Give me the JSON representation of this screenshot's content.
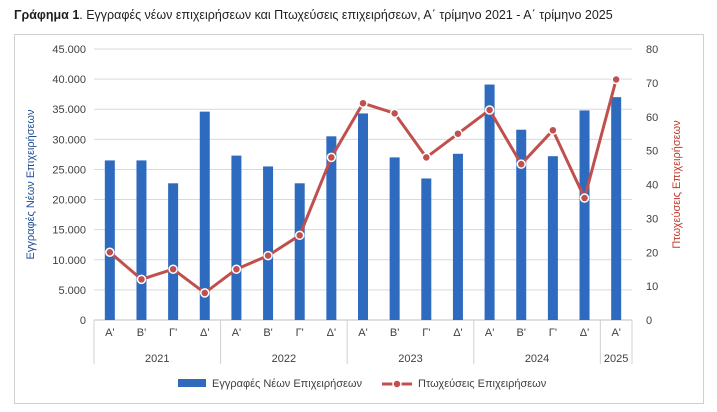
{
  "title": {
    "bold": "Γράφημα 1",
    "rest": ". Εγγραφές νέων επιχειρήσεων και Πτωχεύσεις επιχειρήσεων, Α΄ τρίμηνο 2021 - Α΄ τρίμηνο 2025"
  },
  "chart_data": {
    "type": "bar",
    "quarters": [
      "Α'",
      "Β'",
      "Γ'",
      "Δ'",
      "Α'",
      "Β'",
      "Γ'",
      "Δ'",
      "Α'",
      "Β'",
      "Γ'",
      "Δ'",
      "Α'",
      "Β'",
      "Γ'",
      "Δ'",
      "Α'"
    ],
    "years": [
      {
        "label": "2021",
        "count": 4
      },
      {
        "label": "2022",
        "count": 4
      },
      {
        "label": "2023",
        "count": 4
      },
      {
        "label": "2024",
        "count": 4
      },
      {
        "label": "2025",
        "count": 1
      }
    ],
    "series": [
      {
        "name": "Εγγραφές Νέων Επιχειρήσεων",
        "type": "bar",
        "axis": "left",
        "color": "#2e6bbf",
        "values": [
          26500,
          26500,
          22700,
          34600,
          27300,
          25500,
          22700,
          30500,
          34300,
          27000,
          23500,
          27600,
          39100,
          31600,
          27200,
          34800,
          37000
        ]
      },
      {
        "name": "Πτωχεύσεις Επιχειρήσεων",
        "type": "line",
        "axis": "right",
        "color": "#c0504d",
        "values": [
          20,
          12,
          15,
          8,
          15,
          19,
          25,
          48,
          64,
          61,
          48,
          55,
          62,
          46,
          56,
          36,
          71
        ]
      }
    ],
    "y_left": {
      "label": "Εγγραφές Νέων Επιχειρήσεων",
      "min": 0,
      "max": 45000,
      "step": 5000,
      "ticks": [
        "0",
        "5.000",
        "10.000",
        "15.000",
        "20.000",
        "25.000",
        "30.000",
        "35.000",
        "40.000",
        "45.000"
      ]
    },
    "y_right": {
      "label": "Πτωχεύσεις Επιχειρήσεων",
      "min": 0,
      "max": 80,
      "step": 10,
      "ticks": [
        "0",
        "10",
        "20",
        "30",
        "40",
        "50",
        "60",
        "70",
        "80"
      ]
    },
    "grid": true,
    "legend": "bottom"
  }
}
